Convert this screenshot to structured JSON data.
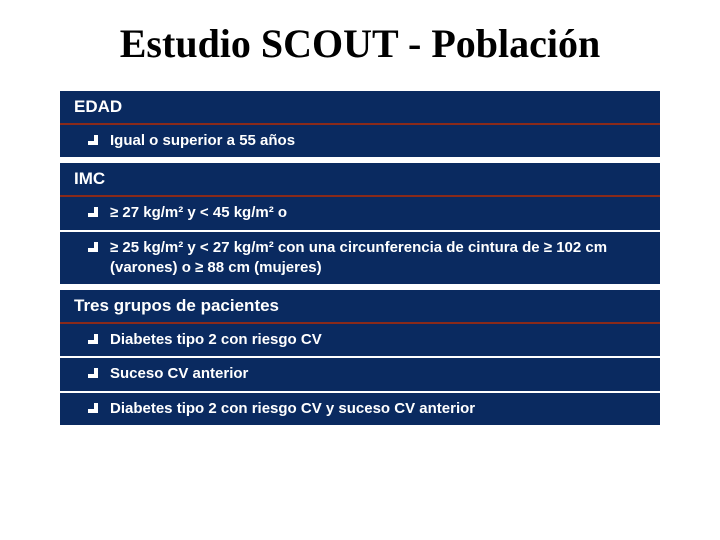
{
  "colors": {
    "header_bg": "#0a2a60",
    "header_text": "#ffffff",
    "header_underline": "#8a2a1a",
    "slide_bg": "#ffffff",
    "title_color": "#000000"
  },
  "typography": {
    "title_font": "Times New Roman",
    "title_size_pt": 40,
    "body_font": "Verdana",
    "section_header_size_pt": 17,
    "item_size_pt": 15,
    "bold": true
  },
  "title": "Estudio SCOUT - Población",
  "sections": [
    {
      "header": "EDAD",
      "items": [
        "Igual o superior a 55 años"
      ]
    },
    {
      "header": "IMC",
      "items": [
        "≥ 27 kg/m²  y < 45 kg/m² o",
        "≥ 25 kg/m² y  < 27 kg/m² con una circunferencia de cintura de ≥ 102 cm (varones) o ≥ 88 cm (mujeres)"
      ]
    },
    {
      "header": "Tres grupos de pacientes",
      "items": [
        "Diabetes tipo 2 con riesgo CV",
        "Suceso CV anterior",
        "Diabetes tipo 2 con riesgo CV y suceso CV anterior"
      ]
    }
  ]
}
